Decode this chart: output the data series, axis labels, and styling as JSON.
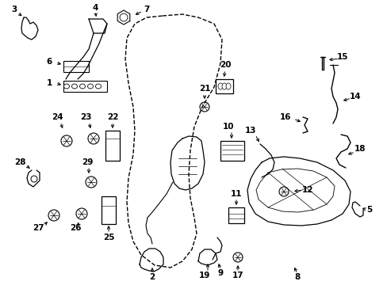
{
  "background_color": "#ffffff",
  "line_color": "#000000",
  "font_size": 7.5,
  "figsize": [
    4.89,
    3.6
  ],
  "dpi": 100
}
